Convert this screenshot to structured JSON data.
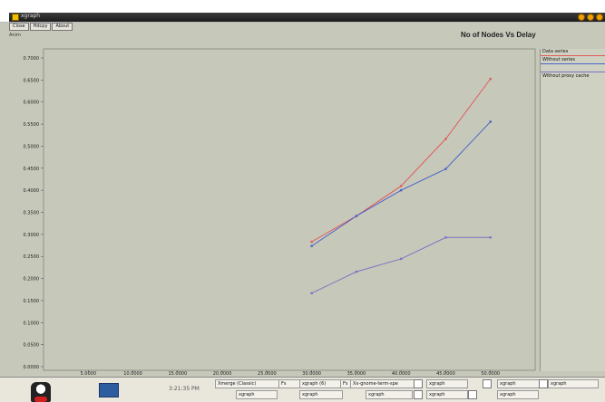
{
  "window": {
    "title": "xgraph",
    "menu": [
      "Close",
      "Hdcpy",
      "About"
    ],
    "sub_button": "Anim"
  },
  "chart_data": {
    "type": "line",
    "title": "No of Nodes Vs Delay",
    "xlabel": "",
    "ylabel": "",
    "grid": false,
    "legend": "right",
    "x": [
      5,
      10,
      15,
      20,
      25,
      30,
      35,
      40,
      45,
      50
    ],
    "xlim": [
      0,
      55
    ],
    "ylim": [
      0,
      0.75
    ],
    "x_tick_labels": [
      "5.0000",
      "10.0000",
      "15.0000",
      "20.0000",
      "25.0000",
      "30.0000",
      "35.0000",
      "40.0000",
      "45.0000",
      "50.0000"
    ],
    "y_tick_labels": [
      "0.7000",
      "0.6500",
      "0.6000",
      "0.5500",
      "0.5000",
      "0.4500",
      "0.4000",
      "0.3500",
      "0.3000",
      "0.2500",
      "0.2000",
      "0.1500",
      "0.1000",
      "0.0500",
      "0.0000"
    ],
    "series": [
      {
        "name": "Data series",
        "color": "#e15a5a",
        "x": [
          30,
          35,
          40,
          45,
          50
        ],
        "values": [
          0.3,
          0.36,
          0.43,
          0.54,
          0.68
        ]
      },
      {
        "name": "Without series",
        "color": "#4a63c8",
        "x": [
          30,
          35,
          40,
          45,
          50
        ],
        "values": [
          0.29,
          0.36,
          0.42,
          0.47,
          0.58
        ]
      },
      {
        "name": "",
        "color": "#8070c4",
        "x": [
          30,
          35,
          40,
          45,
          50
        ],
        "values": [
          0.18,
          0.23,
          0.26,
          0.31,
          0.31
        ]
      },
      {
        "name": "Without proxy cache",
        "color": "#b07fb0",
        "x": [],
        "values": []
      }
    ]
  },
  "taskbar": {
    "clock": "3:21:35 PM",
    "row1": [
      "Xmerge (Classic)",
      "Fs",
      "xgraph (6)",
      "Fs",
      "Xx-gnome-term-spe",
      "xgraph",
      "xgraph",
      "xgraph"
    ],
    "row2": [
      "xgraph",
      "xgraph",
      "xgraph",
      "xgraph",
      "xgraph"
    ]
  }
}
